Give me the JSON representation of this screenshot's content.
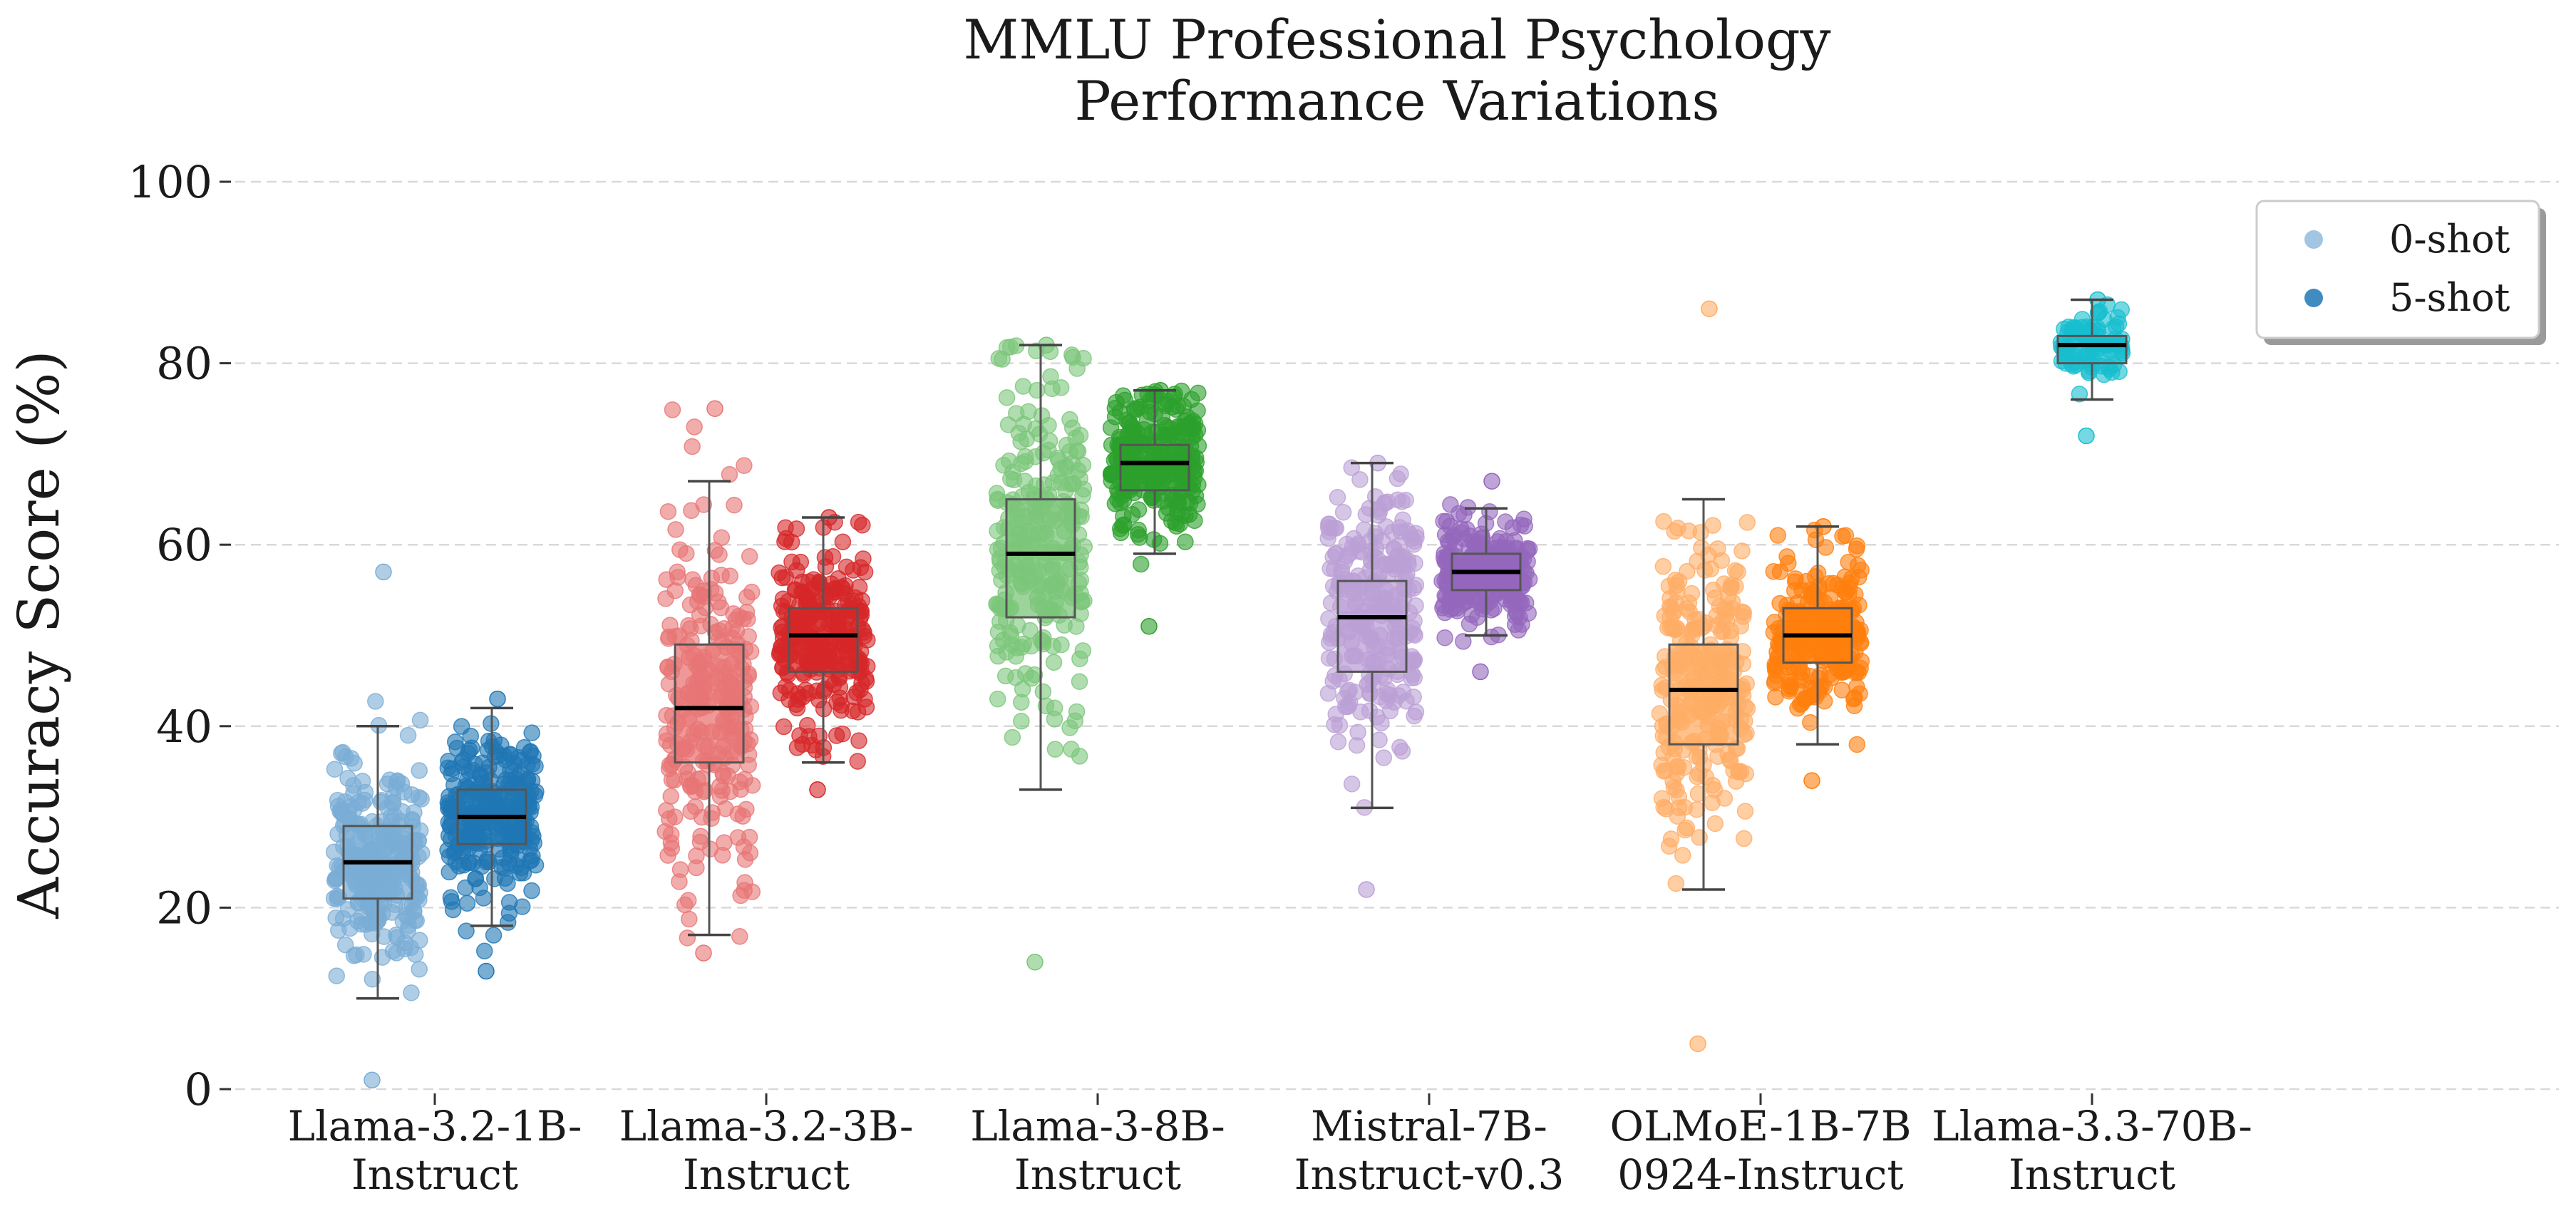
{
  "chart_data": {
    "type": "box-strip",
    "title": [
      "MMLU Professional Psychology",
      "Performance Variations"
    ],
    "ylabel": "Accuracy Score (%)",
    "xlabel": "",
    "ylim": [
      0,
      100
    ],
    "yticks": [
      0,
      20,
      40,
      60,
      80,
      100
    ],
    "grid": "horizontal-dashed",
    "legend_position": "top-right",
    "categories": [
      [
        "Llama-3.2-1B-",
        "Instruct"
      ],
      [
        "Llama-3.2-3B-",
        "Instruct"
      ],
      [
        "Llama-3-8B-",
        "Instruct"
      ],
      [
        "Mistral-7B-",
        "Instruct-v0.3"
      ],
      [
        "OLMoE-1B-7B",
        "0924-Instruct"
      ],
      [
        "Llama-3.3-70B-",
        "Instruct"
      ]
    ],
    "series": [
      {
        "name": "0-shot",
        "colors": [
          "#7aadd6",
          "#e87575",
          "#7cc67a",
          "#bba0d6",
          "#ffad66",
          "#5dd3e0"
        ],
        "stats": [
          {
            "min": 10,
            "q1": 21,
            "median": 25,
            "q3": 29,
            "max": 40,
            "range": [
              1,
              57
            ]
          },
          {
            "min": 17,
            "q1": 36,
            "median": 42,
            "q3": 49,
            "max": 67,
            "range": [
              15,
              75
            ]
          },
          {
            "min": 33,
            "q1": 52,
            "median": 59,
            "q3": 65,
            "max": 82,
            "range": [
              14,
              82
            ]
          },
          {
            "min": 31,
            "q1": 46,
            "median": 52,
            "q3": 56,
            "max": 69,
            "range": [
              22,
              69
            ]
          },
          {
            "min": 22,
            "q1": 38,
            "median": 44,
            "q3": 49,
            "max": 65,
            "range": [
              5,
              86
            ]
          },
          null
        ]
      },
      {
        "name": "5-shot",
        "colors": [
          "#1f77b4",
          "#d62728",
          "#2ca02c",
          "#9467bd",
          "#ff7f0e",
          "#17becf"
        ],
        "stats": [
          {
            "min": 18,
            "q1": 27,
            "median": 30,
            "q3": 33,
            "max": 42,
            "range": [
              13,
              43
            ]
          },
          {
            "min": 36,
            "q1": 46,
            "median": 50,
            "q3": 53,
            "max": 63,
            "range": [
              33,
              63
            ]
          },
          {
            "min": 59,
            "q1": 66,
            "median": 69,
            "q3": 71,
            "max": 77,
            "range": [
              51,
              77
            ]
          },
          {
            "min": 50,
            "q1": 55,
            "median": 57,
            "q3": 59,
            "max": 64,
            "range": [
              46,
              67
            ]
          },
          {
            "min": 38,
            "q1": 47,
            "median": 50,
            "q3": 53,
            "max": 62,
            "range": [
              34,
              62
            ]
          },
          {
            "min": 76,
            "q1": 80,
            "median": 82,
            "q3": 83,
            "max": 87,
            "range": [
              72,
              87
            ]
          }
        ]
      }
    ]
  }
}
